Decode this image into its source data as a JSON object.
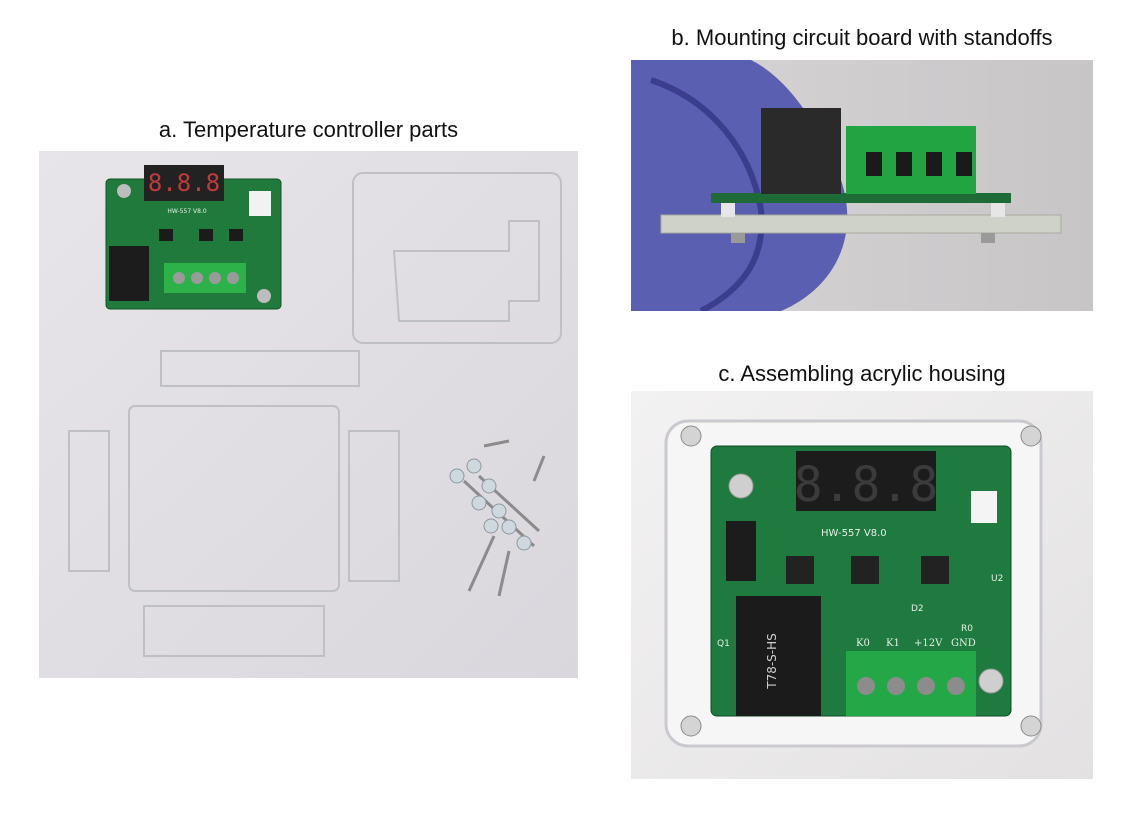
{
  "figure": {
    "panels": [
      {
        "caption": "a. Temperature controller parts",
        "board_labels": {
          "model": "HW-557 V8.0"
        }
      },
      {
        "caption": "b. Mounting circuit board with standoffs"
      },
      {
        "caption": "c. Assembling acrylic housing",
        "board_labels": {
          "model": "HW-557 V8.0",
          "terminals": [
            "K0",
            "K1",
            "+12V",
            "GND"
          ],
          "relay_text": "T78-S-HS",
          "refs": [
            "Q1",
            "D2",
            "U2",
            "R0"
          ]
        }
      }
    ]
  }
}
